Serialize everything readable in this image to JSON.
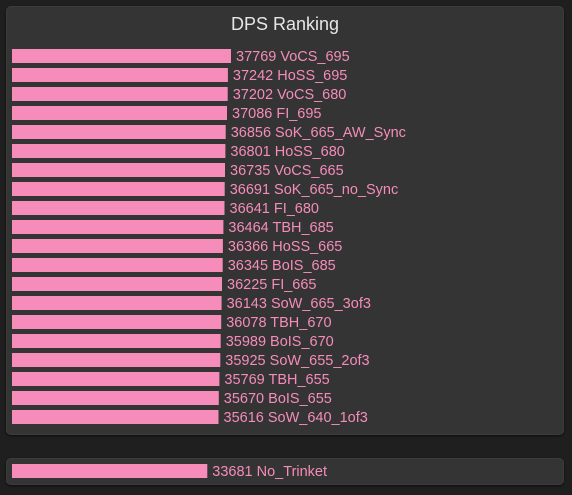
{
  "colors": {
    "bar": "#f58cba",
    "label": "#f58cba",
    "title": "#e6e6e6",
    "panel": "#343434",
    "background": "#1f1f1f"
  },
  "chart_data": [
    {
      "type": "bar",
      "orientation": "horizontal",
      "title": "DPS Ranking",
      "xlim": [
        0,
        37769
      ],
      "categories": [
        "VoCS_695",
        "HoSS_695",
        "VoCS_680",
        "FI_695",
        "SoK_665_AW_Sync",
        "HoSS_680",
        "VoCS_665",
        "SoK_665_no_Sync",
        "FI_680",
        "TBH_685",
        "HoSS_665",
        "BoIS_685",
        "FI_665",
        "SoW_665_3of3",
        "TBH_670",
        "BoIS_670",
        "SoW_655_2of3",
        "TBH_655",
        "BoIS_655",
        "SoW_640_1of3"
      ],
      "values": [
        37769,
        37242,
        37202,
        37086,
        36856,
        36801,
        36735,
        36691,
        36641,
        36464,
        36366,
        36345,
        36225,
        36143,
        36078,
        35989,
        35925,
        35769,
        35670,
        35616
      ]
    },
    {
      "type": "bar",
      "orientation": "horizontal",
      "categories": [
        "No_Trinket"
      ],
      "values": [
        33681
      ]
    }
  ]
}
